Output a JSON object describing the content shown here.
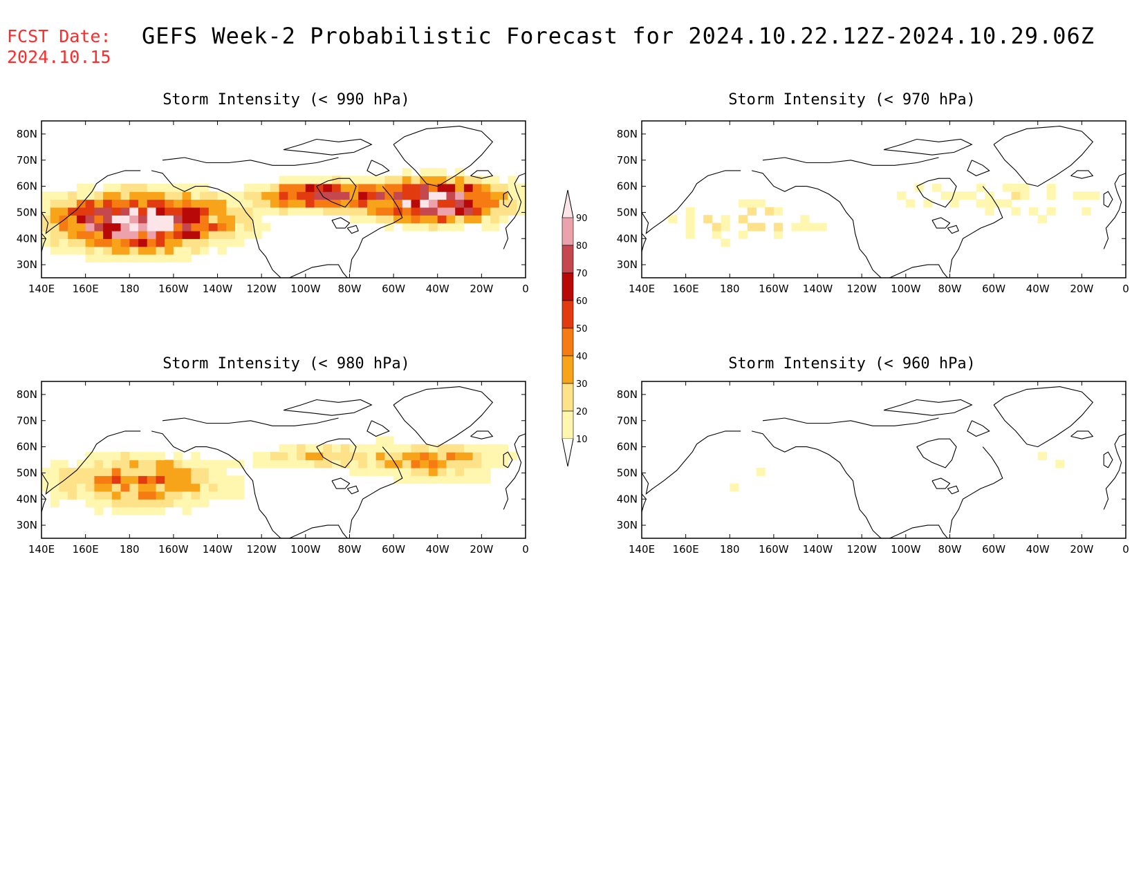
{
  "header": {
    "fcst_label": "FCST Date:",
    "fcst_date": "2024.10.15",
    "title": "GEFS Week-2 Probabilistic Forecast for 2024.10.22.12Z-2024.10.29.06Z"
  },
  "map": {
    "lon_labels": [
      "140E",
      "160E",
      "180",
      "160W",
      "140W",
      "120W",
      "100W",
      "80W",
      "60W",
      "40W",
      "20W",
      "0"
    ],
    "lat_labels": [
      "80N",
      "70N",
      "60N",
      "50N",
      "40N",
      "30N"
    ]
  },
  "colors": {
    "levels": [
      10,
      20,
      30,
      40,
      50,
      60,
      70,
      80,
      90
    ],
    "fills": [
      "#fff7b0",
      "#fde28a",
      "#f8a41a",
      "#f57b12",
      "#e23b10",
      "#b80808",
      "#c4484e",
      "#eba2ab",
      "#fbe5e9"
    ]
  },
  "colorbar": {
    "labels": [
      "90",
      "80",
      "70",
      "60",
      "50",
      "40",
      "30",
      "20",
      "10"
    ]
  },
  "panels": [
    {
      "id": "p990",
      "title": "Storm Intensity (< 990 hPa)",
      "intensity": "high"
    },
    {
      "id": "p970",
      "title": "Storm Intensity (< 970 hPa)",
      "intensity": "low"
    },
    {
      "id": "p980",
      "title": "Storm Intensity (< 980 hPa)",
      "intensity": "medium"
    },
    {
      "id": "p960",
      "title": "Storm Intensity (< 960 hPa)",
      "intensity": "minimal"
    }
  ]
}
